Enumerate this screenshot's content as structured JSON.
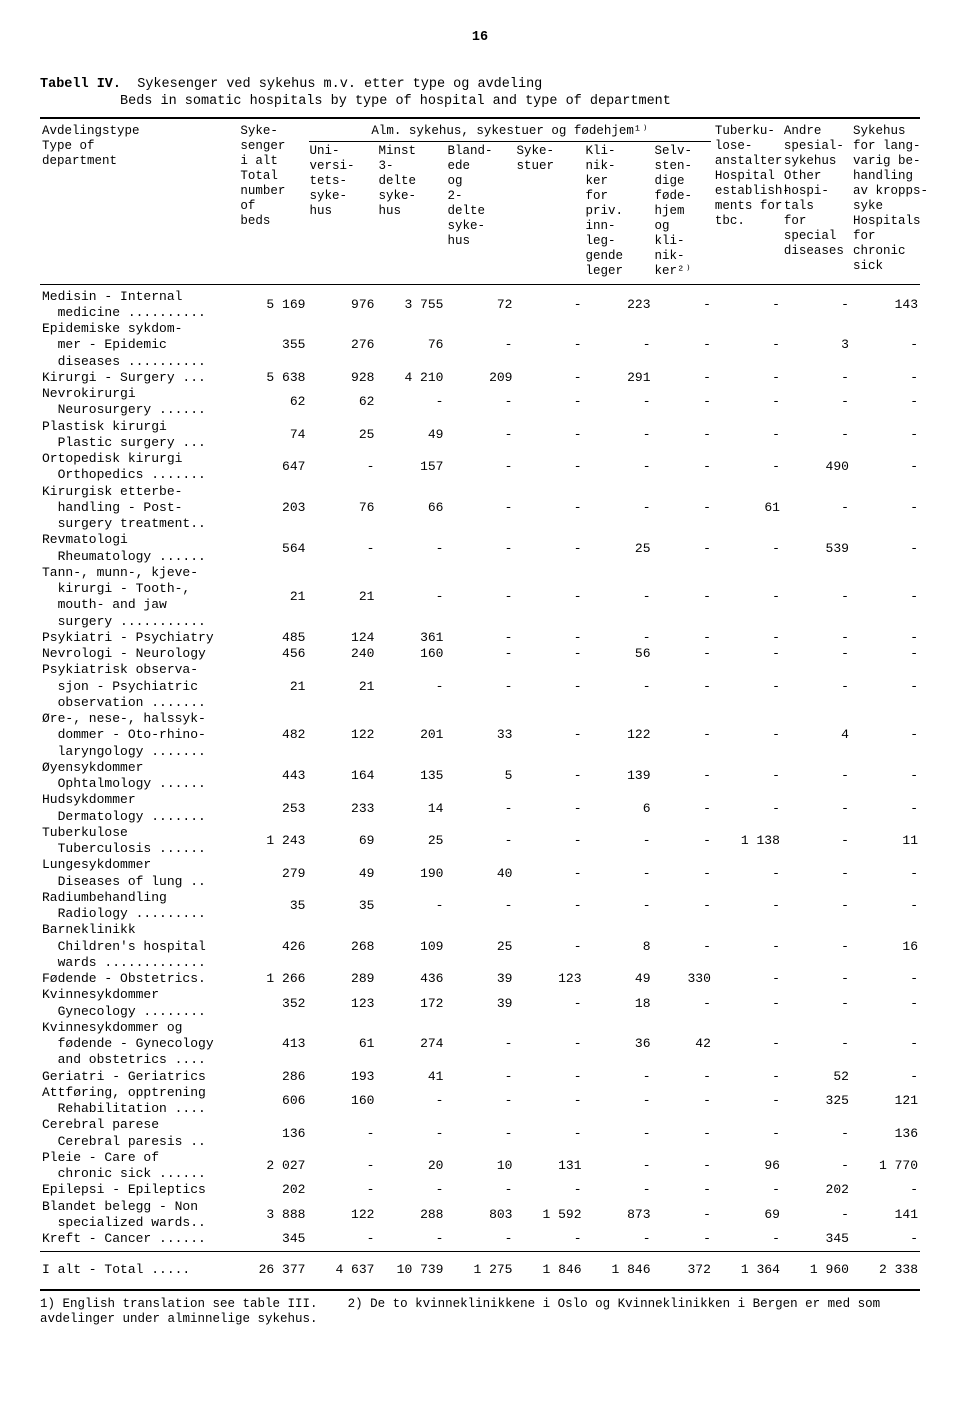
{
  "page_number": "16",
  "table_number": "Tabell IV.",
  "title_no": "Sykesenger ved sykehus m.v. etter type og avdeling",
  "title_en": "Beds in somatic hospitals by type of hospital and type of department",
  "head": {
    "dept": "Avdelingstype\nType of\ndepartment",
    "total": "Syke-\nsenger\ni alt\nTotal\nnumber\nof\nbeds",
    "alm_group": "Alm. sykehus, sykestuer og fødehjem¹⁾",
    "uni": "Uni-\nversi-\ntets-\nsyke-\nhus",
    "minst3": "Minst\n3-\ndelte\nsyke-\nhus",
    "bland": "Bland-\nede\nog\n2-\ndelte\nsyke-\nhus",
    "sykestuer": "Syke-\nstuer",
    "klinik": "Kli-\nnik-\nker\nfor\npriv.\ninn-\nleg-\ngende\nleger",
    "selv": "Selv-\nsten-\ndige\nføde-\nhjem\nog\nkli-\nnik-\nker²⁾",
    "tbc": "Tuberku-\nlose-\nanstalter\nHospital\nestablish-\nments for\ntbc.",
    "andre": "Andre\nspesial-\nsykehus\nOther\nhospi-\ntals\nfor\nspecial\ndiseases",
    "lang": "Sykehus\nfor lang-\nvarig be-\nhandling\nav kropps-\nsyke\nHospitals\nfor\nchronic\nsick"
  },
  "rows": [
    {
      "label": "Medisin - Internal\n  medicine ..........",
      "v": [
        "5 169",
        "976",
        "3 755",
        "72",
        "-",
        "223",
        "-",
        "-",
        "-",
        "143"
      ]
    },
    {
      "label": "Epidemiske sykdom-\n  mer - Epidemic\n  diseases ..........",
      "v": [
        "355",
        "276",
        "76",
        "-",
        "-",
        "-",
        "-",
        "-",
        "3",
        "-"
      ]
    },
    {
      "label": "Kirurgi - Surgery ...",
      "v": [
        "5 638",
        "928",
        "4 210",
        "209",
        "-",
        "291",
        "-",
        "-",
        "-",
        "-"
      ]
    },
    {
      "label": "Nevrokirurgi\n  Neurosurgery ......",
      "v": [
        "62",
        "62",
        "-",
        "-",
        "-",
        "-",
        "-",
        "-",
        "-",
        "-"
      ]
    },
    {
      "label": "Plastisk kirurgi\n  Plastic surgery ...",
      "v": [
        "74",
        "25",
        "49",
        "-",
        "-",
        "-",
        "-",
        "-",
        "-",
        "-"
      ]
    },
    {
      "label": "Ortopedisk kirurgi\n  Orthopedics .......",
      "v": [
        "647",
        "-",
        "157",
        "-",
        "-",
        "-",
        "-",
        "-",
        "490",
        "-"
      ]
    },
    {
      "label": "Kirurgisk etterbe-\n  handling - Post-\n  surgery treatment..",
      "v": [
        "203",
        "76",
        "66",
        "-",
        "-",
        "-",
        "-",
        "61",
        "-",
        "-"
      ]
    },
    {
      "label": "Revmatologi\n  Rheumatology ......",
      "v": [
        "564",
        "-",
        "-",
        "-",
        "-",
        "25",
        "-",
        "-",
        "539",
        "-"
      ]
    },
    {
      "label": "Tann-, munn-, kjeve-\n  kirurgi - Tooth-,\n  mouth- and jaw\n  surgery ...........",
      "v": [
        "21",
        "21",
        "-",
        "-",
        "-",
        "-",
        "-",
        "-",
        "-",
        "-"
      ]
    },
    {
      "label": "Psykiatri - Psychiatry",
      "v": [
        "485",
        "124",
        "361",
        "-",
        "-",
        "-",
        "-",
        "-",
        "-",
        "-"
      ]
    },
    {
      "label": "Nevrologi - Neurology",
      "v": [
        "456",
        "240",
        "160",
        "-",
        "-",
        "56",
        "-",
        "-",
        "-",
        "-"
      ]
    },
    {
      "label": "Psykiatrisk observa-\n  sjon - Psychiatric\n  observation .......",
      "v": [
        "21",
        "21",
        "-",
        "-",
        "-",
        "-",
        "-",
        "-",
        "-",
        "-"
      ]
    },
    {
      "label": "Øre-, nese-, halssyk-\n  dommer - Oto-rhino-\n  laryngology .......",
      "v": [
        "482",
        "122",
        "201",
        "33",
        "-",
        "122",
        "-",
        "-",
        "4",
        "-"
      ]
    },
    {
      "label": "Øyensykdommer\n  Ophtalmology ......",
      "v": [
        "443",
        "164",
        "135",
        "5",
        "-",
        "139",
        "-",
        "-",
        "-",
        "-"
      ]
    },
    {
      "label": "Hudsykdommer\n  Dermatology .......",
      "v": [
        "253",
        "233",
        "14",
        "-",
        "-",
        "6",
        "-",
        "-",
        "-",
        "-"
      ]
    },
    {
      "label": "Tuberkulose\n  Tuberculosis ......",
      "v": [
        "1 243",
        "69",
        "25",
        "-",
        "-",
        "-",
        "-",
        "1 138",
        "-",
        "11"
      ]
    },
    {
      "label": "Lungesykdommer\n  Diseases of lung ..",
      "v": [
        "279",
        "49",
        "190",
        "40",
        "-",
        "-",
        "-",
        "-",
        "-",
        "-"
      ]
    },
    {
      "label": "Radiumbehandling\n  Radiology .........",
      "v": [
        "35",
        "35",
        "-",
        "-",
        "-",
        "-",
        "-",
        "-",
        "-",
        "-"
      ]
    },
    {
      "label": "Barneklinikk\n  Children's hospital\n  wards .............",
      "v": [
        "426",
        "268",
        "109",
        "25",
        "-",
        "8",
        "-",
        "-",
        "-",
        "16"
      ]
    },
    {
      "label": "Fødende - Obstetrics.",
      "v": [
        "1 266",
        "289",
        "436",
        "39",
        "123",
        "49",
        "330",
        "-",
        "-",
        "-"
      ]
    },
    {
      "label": "Kvinnesykdommer\n  Gynecology ........",
      "v": [
        "352",
        "123",
        "172",
        "39",
        "-",
        "18",
        "-",
        "-",
        "-",
        "-"
      ]
    },
    {
      "label": "Kvinnesykdommer og\n  fødende - Gynecology\n  and obstetrics ....",
      "v": [
        "413",
        "61",
        "274",
        "-",
        "-",
        "36",
        "42",
        "-",
        "-",
        "-"
      ]
    },
    {
      "label": "Geriatri - Geriatrics",
      "v": [
        "286",
        "193",
        "41",
        "-",
        "-",
        "-",
        "-",
        "-",
        "52",
        "-"
      ]
    },
    {
      "label": "Attføring, opptrening\n  Rehabilitation ....",
      "v": [
        "606",
        "160",
        "-",
        "-",
        "-",
        "-",
        "-",
        "-",
        "325",
        "121"
      ]
    },
    {
      "label": "Cerebral parese\n  Cerebral paresis ..",
      "v": [
        "136",
        "-",
        "-",
        "-",
        "-",
        "-",
        "-",
        "-",
        "-",
        "136"
      ]
    },
    {
      "label": "Pleie - Care of\n  chronic sick ......",
      "v": [
        "2 027",
        "-",
        "20",
        "10",
        "131",
        "-",
        "-",
        "96",
        "-",
        "1 770"
      ]
    },
    {
      "label": "Epilepsi - Epileptics",
      "v": [
        "202",
        "-",
        "-",
        "-",
        "-",
        "-",
        "-",
        "-",
        "202",
        "-"
      ]
    },
    {
      "label": "Blandet belegg - Non\n  specialized wards..",
      "v": [
        "3 888",
        "122",
        "288",
        "803",
        "1 592",
        "873",
        "-",
        "69",
        "-",
        "141"
      ]
    },
    {
      "label": "Kreft - Cancer ......",
      "v": [
        "345",
        "-",
        "-",
        "-",
        "-",
        "-",
        "-",
        "-",
        "345",
        "-"
      ]
    }
  ],
  "total_label": "I alt  -  Total .....",
  "total_values": [
    "26 377",
    "4 637",
    "10 739",
    "1 275",
    "1 846",
    "1 846",
    "372",
    "1 364",
    "1 960",
    "2 338"
  ],
  "footnote1": "1) English translation see table III.",
  "footnote2": "2) De to kvinneklinikkene i Oslo og Kvinneklinikken i Bergen er med som avdelinger under alminnelige sykehus.",
  "colwidths_pct": [
    23,
    8,
    8,
    8,
    8,
    8,
    8,
    7,
    8,
    8,
    8
  ]
}
